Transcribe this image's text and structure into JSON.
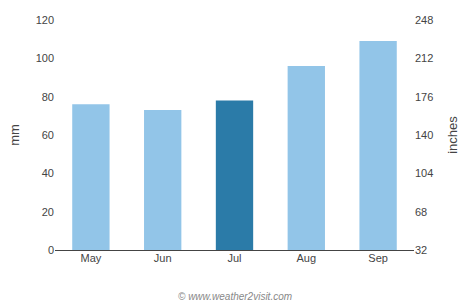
{
  "chart_data": {
    "type": "bar",
    "categories": [
      "May",
      "Jun",
      "Jul",
      "Aug",
      "Sep"
    ],
    "values": [
      76,
      73,
      78,
      96,
      109
    ],
    "colors": [
      "#92C5E8",
      "#92C5E8",
      "#2B7BA8",
      "#92C5E8",
      "#92C5E8"
    ],
    "ylabel": "mm",
    "y2label": "inches",
    "ylim": [
      0,
      120
    ],
    "yticks": [
      0,
      20,
      40,
      60,
      80,
      100,
      120
    ],
    "y2lim": [
      32,
      248
    ],
    "y2ticks": [
      32,
      68,
      104,
      140,
      176,
      212,
      248
    ],
    "grid": false,
    "footer": "© www.weather2visit.com"
  }
}
